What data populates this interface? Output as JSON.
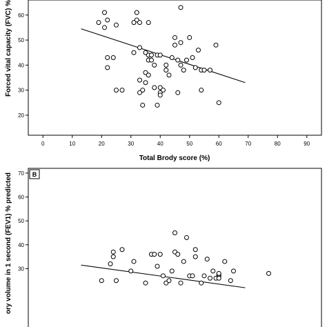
{
  "chart_data": [
    {
      "type": "scatter",
      "panel": "",
      "xlabel": "Total Brody score (%)",
      "ylabel": "Forced vital capacity (FVC) %",
      "xlim": [
        -5,
        95
      ],
      "ylim": [
        12,
        66
      ],
      "xticks": [
        0,
        10,
        20,
        30,
        40,
        50,
        60,
        70,
        80,
        90
      ],
      "yticks": [
        20,
        30,
        40,
        50,
        60
      ],
      "grid": false,
      "marker": "open-circle",
      "fit_line": {
        "x": [
          13,
          69
        ],
        "y": [
          54.5,
          33
        ]
      },
      "points": [
        [
          19,
          57
        ],
        [
          21,
          61
        ],
        [
          22,
          58
        ],
        [
          21,
          55
        ],
        [
          25,
          56
        ],
        [
          22,
          43
        ],
        [
          24,
          43
        ],
        [
          22,
          39
        ],
        [
          25,
          30
        ],
        [
          27,
          30
        ],
        [
          32,
          61
        ],
        [
          32,
          58
        ],
        [
          31,
          57
        ],
        [
          33,
          57
        ],
        [
          36,
          57
        ],
        [
          33,
          47
        ],
        [
          35,
          45
        ],
        [
          36,
          44
        ],
        [
          31,
          45
        ],
        [
          37,
          44
        ],
        [
          39,
          44
        ],
        [
          36,
          42
        ],
        [
          37,
          42
        ],
        [
          38,
          40
        ],
        [
          40,
          44
        ],
        [
          35,
          37
        ],
        [
          36,
          36
        ],
        [
          33,
          34
        ],
        [
          35,
          33
        ],
        [
          34,
          30
        ],
        [
          33,
          29
        ],
        [
          38,
          31
        ],
        [
          40,
          31
        ],
        [
          40,
          29
        ],
        [
          41,
          30
        ],
        [
          42,
          40
        ],
        [
          43,
          36
        ],
        [
          42,
          38
        ],
        [
          40,
          28
        ],
        [
          39,
          24
        ],
        [
          34,
          24
        ],
        [
          44,
          43
        ],
        [
          45,
          51
        ],
        [
          45,
          48
        ],
        [
          47,
          63
        ],
        [
          47,
          49
        ],
        [
          46,
          42
        ],
        [
          47,
          40
        ],
        [
          48,
          38
        ],
        [
          49,
          42
        ],
        [
          50,
          51
        ],
        [
          51,
          43
        ],
        [
          52,
          39
        ],
        [
          53,
          46
        ],
        [
          54,
          38
        ],
        [
          55,
          38
        ],
        [
          57,
          38
        ],
        [
          59,
          48
        ],
        [
          46,
          29
        ],
        [
          54,
          30
        ],
        [
          60,
          25
        ]
      ]
    },
    {
      "type": "scatter",
      "panel": "B",
      "xlabel": "",
      "ylabel": "ory volume in 1 second (FEV1) % predicted",
      "xlim": [
        -5,
        95
      ],
      "ylim": [
        5,
        72
      ],
      "yticks": [
        30,
        40,
        50,
        60,
        70
      ],
      "grid": false,
      "marker": "open-circle",
      "fit_line": {
        "x": [
          13,
          69
        ],
        "y": [
          31.5,
          22
        ]
      },
      "points": [
        [
          20,
          25
        ],
        [
          25,
          25
        ],
        [
          23,
          32
        ],
        [
          24,
          35
        ],
        [
          24,
          37
        ],
        [
          27,
          38
        ],
        [
          30,
          29
        ],
        [
          31,
          33
        ],
        [
          35,
          24
        ],
        [
          37,
          36
        ],
        [
          38,
          36
        ],
        [
          39,
          31
        ],
        [
          40,
          36
        ],
        [
          41,
          27
        ],
        [
          42,
          24
        ],
        [
          43,
          25
        ],
        [
          44,
          29
        ],
        [
          45,
          37
        ],
        [
          45,
          45
        ],
        [
          46,
          36
        ],
        [
          47,
          24
        ],
        [
          48,
          33
        ],
        [
          49,
          43
        ],
        [
          50,
          27
        ],
        [
          51,
          27
        ],
        [
          52,
          35
        ],
        [
          52,
          38
        ],
        [
          54,
          24
        ],
        [
          55,
          27
        ],
        [
          56,
          34
        ],
        [
          57,
          26
        ],
        [
          58,
          29
        ],
        [
          59,
          26
        ],
        [
          60,
          27
        ],
        [
          60,
          27.5
        ],
        [
          60,
          28
        ],
        [
          60,
          26
        ],
        [
          62,
          33
        ],
        [
          64,
          25
        ],
        [
          65,
          29
        ],
        [
          77,
          28
        ]
      ]
    }
  ]
}
